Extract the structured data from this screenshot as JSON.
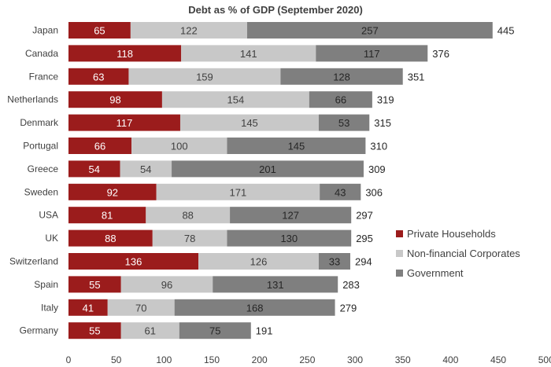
{
  "chart_data": {
    "type": "bar",
    "orientation": "horizontal",
    "stacked": true,
    "title": "Debt as % of GDP (September 2020)",
    "xlabel": "",
    "ylabel": "",
    "xlim": [
      0,
      500
    ],
    "x_ticks": [
      0,
      50,
      100,
      150,
      200,
      250,
      300,
      350,
      400,
      450,
      500
    ],
    "grid": false,
    "legend_position": "right",
    "categories": [
      "Japan",
      "Canada",
      "France",
      "Netherlands",
      "Denmark",
      "Portugal",
      "Greece",
      "Sweden",
      "USA",
      "UK",
      "Switzerland",
      "Spain",
      "Italy",
      "Germany"
    ],
    "series": [
      {
        "name": "Private Households",
        "color": "#9b1c1c",
        "label_color": "#ffffff",
        "values": [
          65,
          118,
          63,
          98,
          117,
          66,
          54,
          92,
          81,
          88,
          136,
          55,
          41,
          55
        ]
      },
      {
        "name": "Non-financial Corporates",
        "color": "#c8c8c8",
        "label_color": "#404040",
        "values": [
          122,
          141,
          159,
          154,
          145,
          100,
          54,
          171,
          88,
          78,
          126,
          96,
          70,
          61
        ]
      },
      {
        "name": "Government",
        "color": "#7f7f7f",
        "label_color": "#262626",
        "values": [
          257,
          117,
          128,
          66,
          53,
          145,
          201,
          43,
          127,
          130,
          33,
          131,
          168,
          75
        ]
      }
    ],
    "totals": [
      445,
      376,
      351,
      319,
      315,
      310,
      309,
      306,
      297,
      295,
      294,
      283,
      279,
      191
    ]
  }
}
